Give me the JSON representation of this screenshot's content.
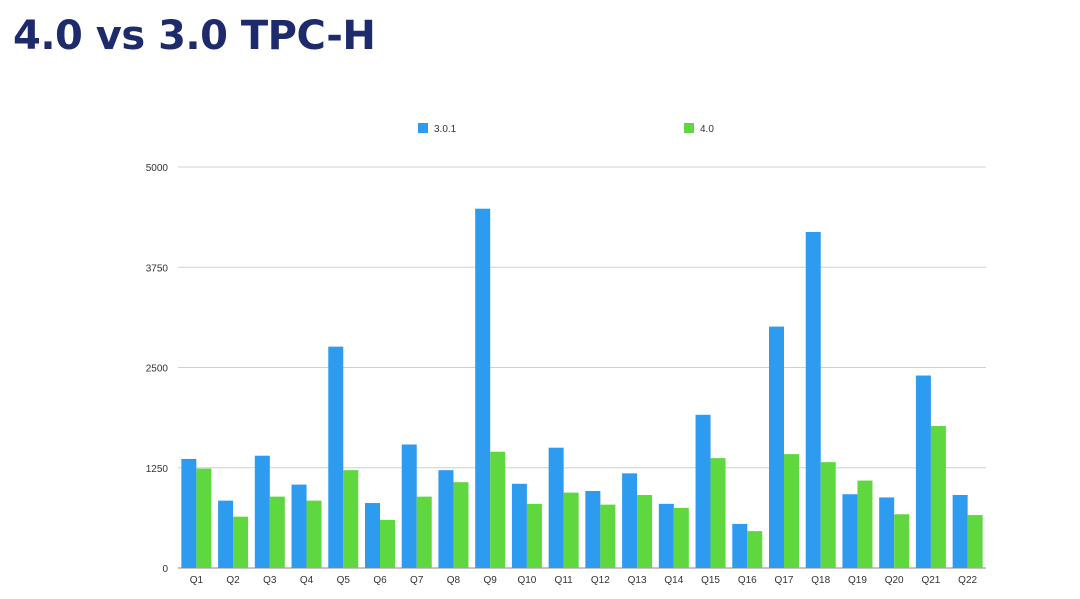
{
  "slide": {
    "title": "4.0 vs 3.0 TPC-H"
  },
  "colors": {
    "title": "#1d2a6b",
    "series_301": "#2d9bf0",
    "series_40": "#5fd83f",
    "grid": "#d0d0d0"
  },
  "chart_data": {
    "type": "bar",
    "title": "",
    "xlabel": "",
    "ylabel": "",
    "ylim": [
      0,
      5000
    ],
    "yticks": [
      0,
      1250,
      2500,
      3750,
      5000
    ],
    "grid": true,
    "legend_position": "top-center",
    "categories": [
      "Q1",
      "Q2",
      "Q3",
      "Q4",
      "Q5",
      "Q6",
      "Q7",
      "Q8",
      "Q9",
      "Q10",
      "Q11",
      "Q12",
      "Q13",
      "Q14",
      "Q15",
      "Q16",
      "Q17",
      "Q18",
      "Q19",
      "Q20",
      "Q21",
      "Q22"
    ],
    "series": [
      {
        "name": "3.0.1",
        "color": "#2d9bf0",
        "values": [
          1360,
          840,
          1400,
          1040,
          2760,
          810,
          1540,
          1220,
          4480,
          1050,
          1500,
          960,
          1180,
          800,
          1910,
          550,
          3010,
          4190,
          920,
          880,
          2400,
          910
        ]
      },
      {
        "name": "4.0",
        "color": "#5fd83f",
        "values": [
          1240,
          640,
          890,
          840,
          1220,
          600,
          890,
          1070,
          1450,
          800,
          940,
          790,
          910,
          750,
          1370,
          460,
          1420,
          1320,
          1090,
          670,
          1770,
          660
        ]
      }
    ]
  }
}
